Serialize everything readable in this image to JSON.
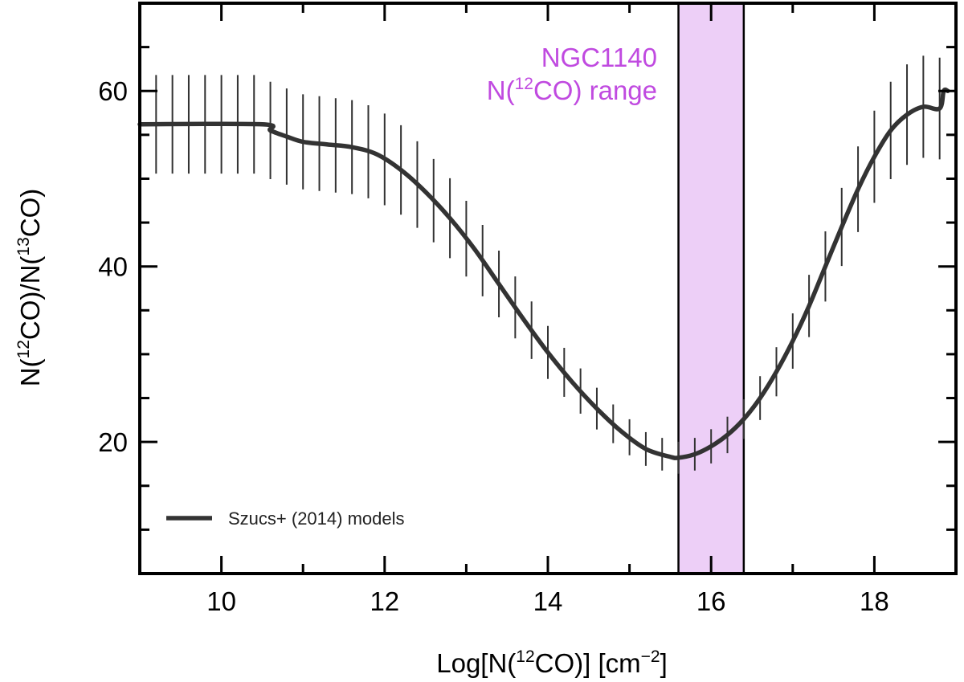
{
  "chart_data": {
    "type": "line",
    "xlabel": {
      "pre": "Log[N(",
      "sup1": "12",
      "mid": "CO)] [cm",
      "sup2": "−2",
      "post": "]"
    },
    "ylabel": {
      "pre": "N(",
      "sup1": "12",
      "mid": "CO)/N(",
      "sup2": "13",
      "post": "CO)"
    },
    "xlim": [
      9,
      19
    ],
    "ylim": [
      5,
      70
    ],
    "x_major_ticks": [
      10,
      12,
      14,
      16,
      18
    ],
    "x_tick_labels": [
      "10",
      "12",
      "14",
      "16",
      "18"
    ],
    "x_minor_step": 1,
    "y_major_ticks": [
      20,
      40,
      60
    ],
    "y_tick_labels": [
      "20",
      "40",
      "60"
    ],
    "y_minor_step": 5,
    "band": {
      "x_range": [
        15.6,
        16.4
      ],
      "label_line1": "NGC1140",
      "label_line2": {
        "pre": "N(",
        "sup": "12",
        "post": "CO) range"
      },
      "fill_color": "#edcff7",
      "text_color": "#c04ae0"
    },
    "series": [
      {
        "name": "Szucs+ (2014) models",
        "color": "#333333",
        "x": [
          9.0,
          10.5,
          10.6,
          10.8,
          11.0,
          11.3,
          11.6,
          11.9,
          12.2,
          12.5,
          12.8,
          13.1,
          13.4,
          13.7,
          14.0,
          14.3,
          14.6,
          14.9,
          15.2,
          15.5,
          15.6,
          15.8,
          16.0,
          16.2,
          16.4,
          16.6,
          16.8,
          17.0,
          17.2,
          17.4,
          17.6,
          17.8,
          18.0,
          18.2,
          18.4,
          18.6,
          18.8,
          18.85,
          18.9
        ],
        "y": [
          56.2,
          56.2,
          55.5,
          54.8,
          54.2,
          53.9,
          53.6,
          52.8,
          51.0,
          48.5,
          45.5,
          42.0,
          38.0,
          34.0,
          30.2,
          26.8,
          23.8,
          21.2,
          19.2,
          18.3,
          18.2,
          18.6,
          19.5,
          20.8,
          22.6,
          25.0,
          28.0,
          31.5,
          35.5,
          40.0,
          44.5,
          48.8,
          52.5,
          55.5,
          57.3,
          58.2,
          58.0,
          60.0,
          60.0
        ]
      }
    ],
    "error_bars": {
      "x": [
        9.0,
        9.2,
        9.4,
        9.6,
        9.8,
        10.0,
        10.2,
        10.4,
        10.6,
        10.8,
        11.0,
        11.2,
        11.4,
        11.6,
        11.8,
        12.0,
        12.2,
        12.4,
        12.6,
        12.8,
        13.0,
        13.2,
        13.4,
        13.6,
        13.8,
        14.0,
        14.2,
        14.4,
        14.6,
        14.8,
        15.0,
        15.2,
        15.4,
        15.6,
        15.8,
        16.0,
        16.2,
        16.4,
        16.6,
        16.8,
        17.0,
        17.2,
        17.4,
        17.6,
        17.8,
        18.0,
        18.2,
        18.4,
        18.6,
        18.8
      ],
      "halfwidth_fraction": 0.1
    },
    "legend": {
      "position": "bottom-left",
      "label": "Szucs+ (2014) models"
    }
  }
}
